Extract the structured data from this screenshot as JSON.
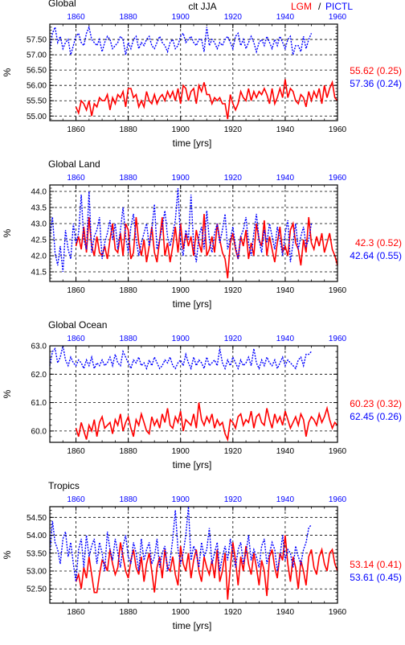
{
  "header": {
    "title": "clt JJA",
    "legend_lgm": "LGM",
    "legend_sep": "/",
    "legend_pictl": "PICTL"
  },
  "colors": {
    "lgm": "#ff0000",
    "pictl": "#0000ff",
    "axis": "#000000"
  },
  "chart_data": [
    {
      "type": "line",
      "title": "Global",
      "xlabel": "time [yrs]",
      "ylabel": "%",
      "xlim": [
        1850,
        1960
      ],
      "top_xlim": [
        1850,
        1960
      ],
      "ylim": [
        54.85,
        58.0
      ],
      "yticks": [
        "55.00",
        "55.50",
        "56.00",
        "56.50",
        "57.00",
        "57.50"
      ],
      "yticks_values": [
        55.0,
        55.5,
        56.0,
        56.5,
        57.0,
        57.5
      ],
      "xticks": [
        "1860",
        "1880",
        "1900",
        "1920",
        "1940",
        "1960"
      ],
      "grid": true,
      "series": [
        {
          "name": "LGM",
          "color": "#ff0000",
          "style": "solid",
          "x_start": 1860,
          "x_end": 1960,
          "values": [
            55.3,
            55.1,
            55.5,
            55.4,
            55.2,
            55.5,
            55.0,
            55.4,
            55.3,
            55.6,
            55.5,
            55.5,
            55.7,
            55.2,
            55.6,
            55.4,
            55.7,
            55.6,
            55.8,
            55.3,
            55.9,
            55.9,
            55.6,
            55.7,
            55.3,
            55.5,
            55.3,
            55.8,
            55.5,
            55.4,
            55.7,
            55.4,
            55.6,
            55.7,
            55.5,
            55.8,
            55.6,
            55.8,
            55.5,
            55.9,
            55.4,
            56.0,
            55.9,
            55.5,
            55.8,
            55.9,
            55.4,
            56.0,
            55.8,
            56.1,
            55.7,
            55.7,
            55.4,
            55.6,
            55.5,
            55.6,
            55.4,
            55.4,
            54.9,
            55.7,
            55.4,
            55.2,
            55.4,
            55.8,
            55.6,
            55.5,
            55.9,
            55.5,
            55.8,
            55.6,
            55.8,
            55.7,
            55.9,
            55.7,
            55.4,
            55.9,
            55.4,
            55.6,
            55.9,
            55.6,
            56.2,
            55.6,
            55.9,
            55.8,
            55.5,
            55.4,
            55.7,
            55.6,
            55.3,
            55.8,
            55.5,
            55.8,
            55.6,
            55.9,
            55.4,
            56.0,
            55.6,
            55.9,
            56.1,
            55.6,
            55.5
          ]
        },
        {
          "name": "PICTL",
          "color": "#0000ff",
          "style": "dotted",
          "x_start": 1850,
          "x_end": 1950,
          "values": [
            57.2,
            57.7,
            57.9,
            57.4,
            57.6,
            57.2,
            57.4,
            57.5,
            57.0,
            57.3,
            57.6,
            57.7,
            57.4,
            57.3,
            57.7,
            57.9,
            57.5,
            57.4,
            57.3,
            57.5,
            57.1,
            57.4,
            57.6,
            57.5,
            57.2,
            57.3,
            57.4,
            57.6,
            57.5,
            57.0,
            57.4,
            57.2,
            57.5,
            57.6,
            57.2,
            57.4,
            57.3,
            57.5,
            57.6,
            57.3,
            57.2,
            57.4,
            57.6,
            57.4,
            57.3,
            57.1,
            57.4,
            57.5,
            57.2,
            57.3,
            57.6,
            57.7,
            57.4,
            57.5,
            57.6,
            57.4,
            57.3,
            57.5,
            57.5,
            57.1,
            57.9,
            57.3,
            57.5,
            57.4,
            57.2,
            57.4,
            57.3,
            57.5,
            57.6,
            57.4,
            57.2,
            57.6,
            57.7,
            57.3,
            57.5,
            57.2,
            57.4,
            57.6,
            57.4,
            57.1,
            57.4,
            57.5,
            57.3,
            57.6,
            57.4,
            57.2,
            57.5,
            57.3,
            57.6,
            57.4,
            57.2,
            57.5,
            57.6,
            57.0,
            57.3,
            57.3,
            57.1,
            57.6,
            57.2,
            57.5,
            57.7
          ]
        }
      ],
      "stats": [
        {
          "text": "55.62 (0.25)",
          "color": "#ff0000"
        },
        {
          "text": "57.36 (0.24)",
          "color": "#0000ff"
        }
      ]
    },
    {
      "type": "line",
      "title": "Global Land",
      "xlabel": "time [yrs]",
      "ylabel": "%",
      "xlim": [
        1850,
        1960
      ],
      "top_xlim": [
        1850,
        1960
      ],
      "ylim": [
        41.2,
        44.2
      ],
      "yticks": [
        "41.5",
        "42.0",
        "42.5",
        "43.0",
        "43.5",
        "44.0"
      ],
      "yticks_values": [
        41.5,
        42.0,
        42.5,
        43.0,
        43.5,
        44.0
      ],
      "xticks": [
        "1860",
        "1880",
        "1900",
        "1920",
        "1940",
        "1960"
      ],
      "grid": true,
      "series": [
        {
          "name": "LGM",
          "color": "#ff0000",
          "style": "solid",
          "x_start": 1860,
          "x_end": 1960,
          "values": [
            42.3,
            42.6,
            42.2,
            42.9,
            42.1,
            43.2,
            42.3,
            42.0,
            42.6,
            42.1,
            42.0,
            42.3,
            41.9,
            42.5,
            43.0,
            42.2,
            42.1,
            42.7,
            42.0,
            43.0,
            42.8,
            41.9,
            42.1,
            43.2,
            42.4,
            42.0,
            42.5,
            41.8,
            42.3,
            42.9,
            42.1,
            41.8,
            42.5,
            43.2,
            42.0,
            42.4,
            41.8,
            42.3,
            42.9,
            42.1,
            43.0,
            42.2,
            42.7,
            42.3,
            42.6,
            42.0,
            42.8,
            42.4,
            42.1,
            43.3,
            42.0,
            42.2,
            42.6,
            42.1,
            43.0,
            42.5,
            42.1,
            41.9,
            41.3,
            42.4,
            42.7,
            42.2,
            41.9,
            42.6,
            42.3,
            42.8,
            41.9,
            42.4,
            42.0,
            43.0,
            42.5,
            42.3,
            43.1,
            42.0,
            42.6,
            42.2,
            41.8,
            42.4,
            42.9,
            42.1,
            42.3,
            42.0,
            42.8,
            43.0,
            42.4,
            42.2,
            41.7,
            42.5,
            42.1,
            43.2,
            42.4,
            42.2,
            42.6,
            42.3,
            42.7,
            42.1,
            42.4,
            42.7,
            42.2,
            42.0,
            41.7
          ]
        },
        {
          "name": "PICTL",
          "color": "#0000ff",
          "style": "dotted",
          "x_start": 1850,
          "x_end": 1950,
          "values": [
            42.6,
            43.2,
            42.1,
            41.7,
            42.3,
            41.5,
            42.8,
            42.2,
            41.9,
            43.0,
            42.4,
            42.7,
            43.9,
            42.5,
            42.2,
            44.0,
            42.1,
            42.6,
            42.8,
            43.2,
            41.9,
            42.4,
            42.7,
            43.1,
            42.5,
            43.0,
            42.2,
            42.8,
            43.5,
            42.6,
            42.1,
            42.9,
            43.3,
            42.5,
            42.0,
            42.4,
            42.7,
            43.0,
            42.3,
            42.8,
            43.6,
            42.2,
            42.5,
            42.9,
            43.4,
            42.6,
            42.3,
            42.7,
            43.1,
            44.1,
            42.4,
            42.0,
            42.8,
            42.5,
            43.9,
            42.3,
            41.8,
            42.6,
            42.9,
            42.2,
            43.4,
            42.5,
            42.1,
            42.7,
            43.0,
            42.4,
            42.8,
            43.3,
            42.2,
            42.5,
            42.9,
            42.3,
            41.9,
            42.6,
            42.8,
            43.2,
            42.4,
            42.0,
            42.7,
            43.3,
            42.5,
            42.1,
            42.8,
            42.4,
            43.0,
            42.6,
            42.2,
            42.9,
            42.5,
            42.0,
            42.7,
            43.1,
            41.8,
            42.4,
            43.0,
            42.2,
            42.6,
            42.9,
            42.3,
            42.5,
            43.0
          ]
        }
      ],
      "stats": [
        {
          "text": "42.3 (0.52)",
          "color": "#ff0000"
        },
        {
          "text": "42.64 (0.55)",
          "color": "#0000ff"
        }
      ]
    },
    {
      "type": "line",
      "title": "Global Ocean",
      "xlabel": "time [yrs]",
      "ylabel": "%",
      "xlim": [
        1850,
        1960
      ],
      "top_xlim": [
        1850,
        1960
      ],
      "ylim": [
        59.6,
        63.0
      ],
      "yticks": [
        "60.0",
        "61.0",
        "62.0",
        "63.0"
      ],
      "yticks_values": [
        60.0,
        61.0,
        62.0,
        63.0
      ],
      "xticks": [
        "1860",
        "1880",
        "1900",
        "1920",
        "1940",
        "1960"
      ],
      "grid": true,
      "series": [
        {
          "name": "LGM",
          "color": "#ff0000",
          "style": "solid",
          "x_start": 1860,
          "x_end": 1960,
          "values": [
            60.1,
            59.8,
            60.3,
            60.0,
            59.7,
            60.2,
            60.0,
            60.4,
            59.8,
            60.3,
            60.5,
            60.1,
            60.2,
            60.3,
            59.9,
            60.4,
            60.2,
            60.6,
            60.0,
            60.3,
            60.5,
            60.1,
            59.8,
            60.4,
            60.2,
            60.6,
            60.3,
            60.0,
            59.9,
            60.5,
            60.2,
            60.4,
            60.1,
            60.6,
            60.3,
            60.8,
            60.2,
            60.1,
            60.5,
            60.3,
            60.7,
            60.0,
            60.4,
            60.3,
            60.2,
            60.6,
            60.1,
            61.0,
            60.4,
            60.2,
            60.5,
            60.3,
            60.6,
            60.1,
            60.4,
            60.2,
            60.3,
            59.9,
            59.7,
            60.4,
            60.3,
            60.1,
            60.5,
            60.6,
            60.2,
            60.4,
            60.3,
            60.7,
            60.1,
            60.5,
            60.6,
            60.3,
            60.2,
            60.8,
            60.4,
            60.1,
            60.6,
            60.3,
            60.5,
            60.2,
            60.7,
            60.4,
            60.1,
            60.3,
            60.5,
            60.2,
            60.6,
            60.4,
            59.8,
            60.3,
            60.5,
            60.4,
            60.2,
            60.6,
            60.3,
            60.5,
            60.8,
            60.4,
            60.1,
            60.3,
            60.2
          ]
        },
        {
          "name": "PICTL",
          "color": "#0000ff",
          "style": "dotted",
          "x_start": 1850,
          "x_end": 1950,
          "values": [
            62.3,
            62.8,
            62.9,
            62.4,
            62.6,
            63.0,
            62.5,
            62.3,
            62.6,
            62.4,
            62.3,
            62.5,
            62.4,
            62.2,
            62.5,
            62.3,
            62.6,
            62.2,
            62.4,
            62.3,
            62.5,
            62.3,
            62.4,
            62.6,
            62.3,
            62.7,
            62.4,
            62.3,
            62.8,
            62.6,
            62.4,
            62.2,
            62.5,
            62.4,
            62.6,
            62.3,
            62.4,
            62.2,
            62.5,
            62.3,
            62.6,
            62.4,
            62.2,
            62.3,
            62.5,
            62.4,
            62.6,
            62.3,
            62.2,
            62.4,
            62.5,
            62.3,
            62.7,
            62.4,
            62.2,
            62.6,
            62.3,
            62.5,
            62.4,
            62.2,
            62.6,
            62.3,
            62.4,
            62.5,
            62.3,
            62.9,
            62.4,
            62.2,
            62.5,
            62.3,
            62.6,
            62.4,
            62.2,
            62.5,
            62.3,
            62.4,
            62.6,
            62.3,
            62.9,
            62.4,
            62.2,
            62.5,
            62.3,
            62.6,
            62.4,
            62.3,
            62.5,
            62.2,
            62.4,
            62.6,
            62.3,
            62.5,
            62.4,
            62.3,
            62.2,
            62.5,
            62.6,
            62.3,
            62.7,
            62.7,
            62.8
          ]
        }
      ],
      "stats": [
        {
          "text": "60.23 (0.32)",
          "color": "#ff0000"
        },
        {
          "text": "62.45 (0.26)",
          "color": "#0000ff"
        }
      ]
    },
    {
      "type": "line",
      "title": "Tropics",
      "xlabel": "time [yrs]",
      "ylabel": "%",
      "xlim": [
        1850,
        1960
      ],
      "top_xlim": [
        1850,
        1960
      ],
      "ylim": [
        52.1,
        54.8
      ],
      "yticks": [
        "52.50",
        "53.00",
        "53.50",
        "54.00",
        "54.50"
      ],
      "yticks_values": [
        52.5,
        53.0,
        53.5,
        54.0,
        54.5
      ],
      "xticks": [
        "1860",
        "1880",
        "1900",
        "1920",
        "1940",
        "1960"
      ],
      "grid": true,
      "series": [
        {
          "name": "LGM",
          "color": "#ff0000",
          "style": "solid",
          "x_start": 1860,
          "x_end": 1960,
          "values": [
            52.7,
            52.9,
            52.5,
            53.1,
            52.8,
            53.4,
            52.9,
            52.4,
            52.4,
            52.9,
            53.3,
            53.2,
            53.0,
            53.6,
            53.2,
            52.9,
            53.1,
            53.8,
            53.4,
            53.0,
            52.8,
            53.3,
            53.6,
            53.1,
            52.9,
            53.4,
            52.7,
            53.2,
            53.5,
            53.0,
            52.4,
            53.1,
            53.4,
            52.8,
            53.6,
            53.1,
            53.0,
            53.4,
            52.9,
            52.6,
            53.7,
            53.2,
            53.0,
            53.5,
            52.8,
            53.3,
            53.6,
            53.0,
            52.7,
            53.4,
            53.1,
            52.9,
            53.3,
            52.8,
            53.6,
            52.7,
            53.0,
            53.5,
            52.2,
            53.1,
            53.8,
            53.3,
            52.6,
            53.4,
            53.0,
            53.7,
            53.2,
            52.9,
            53.5,
            53.1,
            52.6,
            53.3,
            53.0,
            52.3,
            53.4,
            53.6,
            53.1,
            52.8,
            53.5,
            53.3,
            54.0,
            53.2,
            52.7,
            53.4,
            53.1,
            52.5,
            53.3,
            53.0,
            52.6,
            53.4,
            53.6,
            53.1,
            52.9,
            53.4,
            53.6,
            53.2,
            53.0,
            53.5,
            53.6,
            53.2,
            53.0
          ]
        },
        {
          "name": "PICTL",
          "color": "#0000ff",
          "style": "dotted",
          "x_start": 1850,
          "x_end": 1950,
          "values": [
            53.5,
            54.4,
            53.8,
            53.6,
            53.2,
            53.9,
            54.1,
            53.4,
            53.8,
            53.2,
            52.7,
            53.6,
            53.9,
            53.1,
            54.0,
            53.4,
            53.7,
            53.9,
            53.2,
            53.8,
            53.5,
            53.0,
            54.1,
            53.6,
            53.3,
            53.9,
            53.5,
            53.1,
            53.7,
            54.0,
            53.4,
            53.2,
            53.8,
            53.5,
            53.0,
            53.9,
            53.3,
            53.6,
            53.8,
            53.2,
            53.4,
            53.9,
            53.1,
            53.5,
            53.7,
            53.0,
            53.3,
            53.9,
            54.7,
            53.6,
            53.2,
            53.5,
            54.0,
            54.8,
            53.3,
            53.7,
            53.5,
            53.1,
            53.8,
            53.4,
            53.6,
            54.2,
            53.2,
            53.5,
            53.8,
            53.0,
            53.4,
            53.7,
            53.3,
            53.9,
            53.5,
            53.1,
            53.6,
            53.8,
            53.2,
            53.5,
            54.0,
            53.3,
            53.6,
            53.4,
            53.1,
            53.7,
            53.9,
            53.2,
            53.5,
            53.8,
            53.6,
            53.0,
            53.4,
            54.0,
            53.3,
            53.6,
            53.5,
            53.1,
            53.7,
            53.4,
            53.2,
            53.6,
            53.8,
            54.2,
            54.3
          ]
        }
      ],
      "stats": [
        {
          "text": "53.14 (0.41)",
          "color": "#ff0000"
        },
        {
          "text": "53.61 (0.45)",
          "color": "#0000ff"
        }
      ]
    }
  ]
}
